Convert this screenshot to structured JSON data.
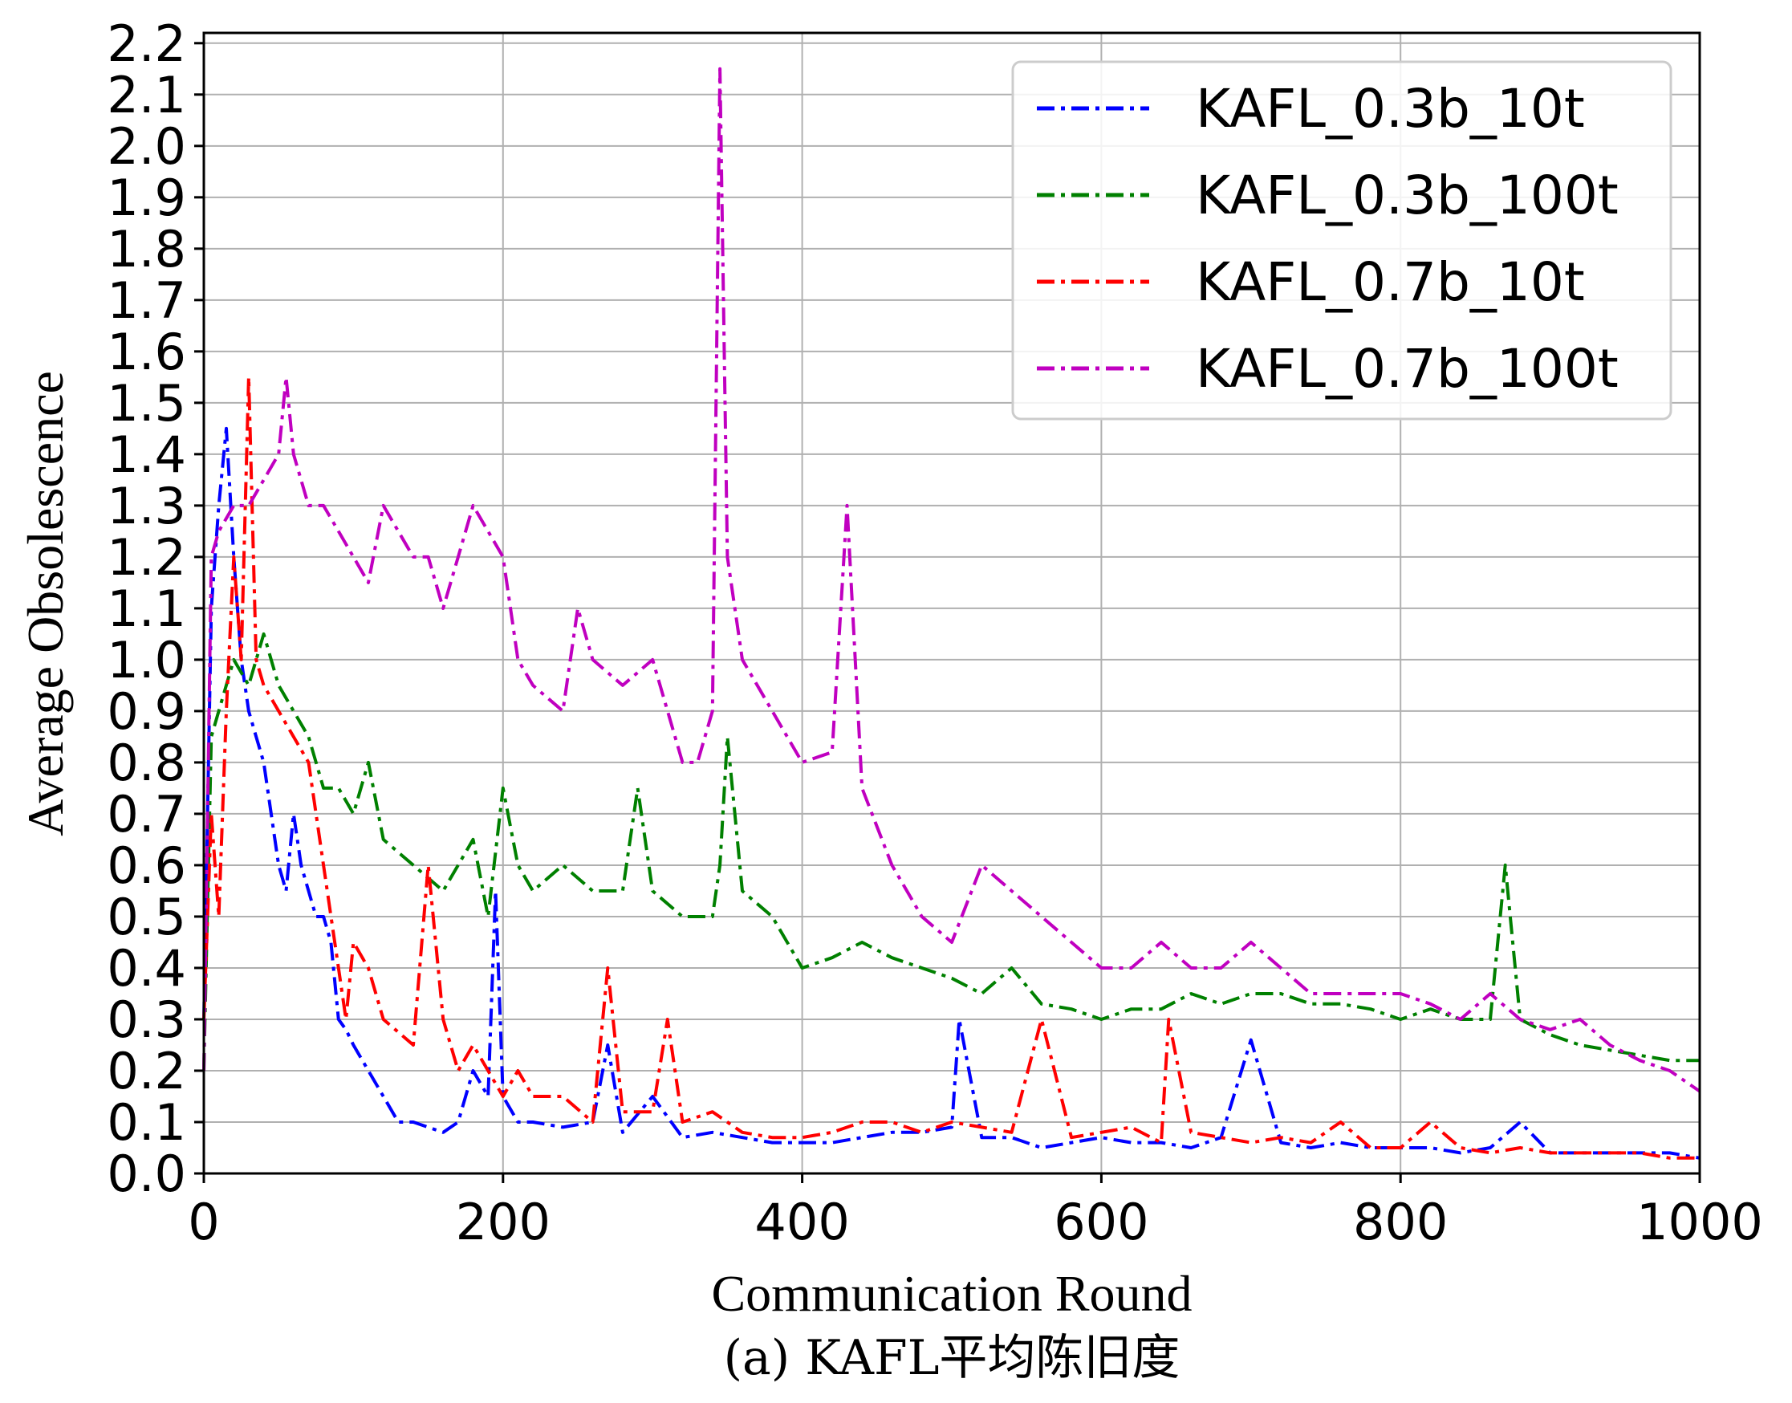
{
  "chart_data": {
    "type": "line",
    "title": "",
    "xlabel": "Communication Round",
    "ylabel": "Average Obsolescence",
    "caption": "(a) KAFL平均陈旧度",
    "xlim": [
      0,
      1000
    ],
    "ylim": [
      0,
      2.22
    ],
    "xticks": [
      0,
      200,
      400,
      600,
      800,
      1000
    ],
    "xtick_labels": [
      "0",
      "200",
      "400",
      "600",
      "800",
      "1000"
    ],
    "yticks": [
      0.0,
      0.1,
      0.2,
      0.3,
      0.4,
      0.5,
      0.6,
      0.7,
      0.8,
      0.9,
      1.0,
      1.1,
      1.2,
      1.3,
      1.4,
      1.5,
      1.6,
      1.7,
      1.8,
      1.9,
      2.0,
      2.1,
      2.2
    ],
    "ytick_labels": [
      "0.0",
      "0.1",
      "0.2",
      "0.3",
      "0.4",
      "0.5",
      "0.6",
      "0.7",
      "0.8",
      "0.9",
      "1.0",
      "1.1",
      "1.2",
      "1.3",
      "1.4",
      "1.5",
      "1.6",
      "1.7",
      "1.8",
      "1.9",
      "2.0",
      "2.1",
      "2.2"
    ],
    "grid": true,
    "legend_position": "top-right",
    "line_style": "dash-dot",
    "series": [
      {
        "name": "KAFL_0.3b_10t",
        "color": "#0000ff",
        "x": [
          0,
          5,
          10,
          15,
          20,
          25,
          30,
          35,
          40,
          45,
          50,
          55,
          60,
          65,
          70,
          75,
          80,
          85,
          90,
          95,
          100,
          110,
          120,
          130,
          140,
          150,
          160,
          170,
          180,
          190,
          195,
          200,
          210,
          220,
          240,
          260,
          270,
          280,
          300,
          320,
          340,
          360,
          380,
          400,
          420,
          440,
          460,
          480,
          500,
          505,
          520,
          540,
          560,
          580,
          600,
          620,
          640,
          660,
          680,
          700,
          720,
          740,
          760,
          780,
          800,
          820,
          840,
          860,
          880,
          900,
          920,
          940,
          960,
          980,
          1000
        ],
        "values": [
          0.3,
          1.1,
          1.3,
          1.45,
          1.2,
          1.0,
          0.9,
          0.85,
          0.8,
          0.7,
          0.6,
          0.55,
          0.7,
          0.6,
          0.55,
          0.5,
          0.5,
          0.45,
          0.3,
          0.28,
          0.25,
          0.2,
          0.15,
          0.1,
          0.1,
          0.09,
          0.08,
          0.1,
          0.2,
          0.15,
          0.55,
          0.15,
          0.1,
          0.1,
          0.09,
          0.1,
          0.25,
          0.08,
          0.15,
          0.07,
          0.08,
          0.07,
          0.06,
          0.06,
          0.06,
          0.07,
          0.08,
          0.08,
          0.09,
          0.3,
          0.07,
          0.07,
          0.05,
          0.06,
          0.07,
          0.06,
          0.06,
          0.05,
          0.07,
          0.26,
          0.06,
          0.05,
          0.06,
          0.05,
          0.05,
          0.05,
          0.04,
          0.05,
          0.1,
          0.04,
          0.04,
          0.04,
          0.04,
          0.04,
          0.03
        ]
      },
      {
        "name": "KAFL_0.3b_100t",
        "color": "#008000",
        "x": [
          0,
          5,
          10,
          20,
          30,
          40,
          50,
          60,
          70,
          80,
          90,
          100,
          110,
          120,
          140,
          160,
          180,
          190,
          200,
          210,
          220,
          240,
          260,
          280,
          290,
          300,
          320,
          340,
          345,
          350,
          360,
          380,
          400,
          420,
          440,
          460,
          480,
          500,
          520,
          540,
          560,
          580,
          600,
          620,
          640,
          660,
          680,
          700,
          720,
          740,
          760,
          780,
          800,
          820,
          840,
          860,
          870,
          880,
          900,
          920,
          940,
          960,
          980,
          1000
        ],
        "values": [
          0.2,
          0.85,
          0.9,
          1.0,
          0.95,
          1.05,
          0.95,
          0.9,
          0.85,
          0.75,
          0.75,
          0.7,
          0.8,
          0.65,
          0.6,
          0.55,
          0.65,
          0.5,
          0.75,
          0.6,
          0.55,
          0.6,
          0.55,
          0.55,
          0.75,
          0.55,
          0.5,
          0.5,
          0.6,
          0.85,
          0.55,
          0.5,
          0.4,
          0.42,
          0.45,
          0.42,
          0.4,
          0.38,
          0.35,
          0.4,
          0.33,
          0.32,
          0.3,
          0.32,
          0.32,
          0.35,
          0.33,
          0.35,
          0.35,
          0.33,
          0.33,
          0.32,
          0.3,
          0.32,
          0.3,
          0.3,
          0.6,
          0.3,
          0.27,
          0.25,
          0.24,
          0.23,
          0.22,
          0.22
        ]
      },
      {
        "name": "KAFL_0.7b_10t",
        "color": "#ff0000",
        "x": [
          0,
          5,
          10,
          15,
          20,
          25,
          30,
          35,
          40,
          50,
          60,
          70,
          80,
          90,
          95,
          100,
          110,
          120,
          140,
          150,
          160,
          170,
          180,
          190,
          200,
          210,
          220,
          240,
          260,
          270,
          280,
          300,
          310,
          320,
          340,
          360,
          380,
          400,
          420,
          440,
          460,
          480,
          500,
          520,
          540,
          560,
          580,
          600,
          620,
          640,
          645,
          660,
          680,
          700,
          720,
          740,
          760,
          780,
          800,
          820,
          840,
          860,
          880,
          900,
          920,
          940,
          960,
          980,
          1000
        ],
        "values": [
          0.3,
          0.7,
          0.5,
          0.9,
          1.2,
          1.0,
          1.55,
          1.0,
          0.95,
          0.9,
          0.85,
          0.8,
          0.6,
          0.4,
          0.3,
          0.45,
          0.4,
          0.3,
          0.25,
          0.6,
          0.3,
          0.2,
          0.25,
          0.2,
          0.15,
          0.2,
          0.15,
          0.15,
          0.1,
          0.4,
          0.12,
          0.12,
          0.3,
          0.1,
          0.12,
          0.08,
          0.07,
          0.07,
          0.08,
          0.1,
          0.1,
          0.08,
          0.1,
          0.09,
          0.08,
          0.3,
          0.07,
          0.08,
          0.09,
          0.06,
          0.3,
          0.08,
          0.07,
          0.06,
          0.07,
          0.06,
          0.1,
          0.05,
          0.05,
          0.1,
          0.05,
          0.04,
          0.05,
          0.04,
          0.04,
          0.04,
          0.04,
          0.03,
          0.03
        ]
      },
      {
        "name": "KAFL_0.7b_100t",
        "color": "#c000c0",
        "x": [
          0,
          5,
          10,
          20,
          30,
          40,
          50,
          55,
          60,
          70,
          80,
          90,
          100,
          110,
          120,
          130,
          140,
          150,
          160,
          170,
          180,
          190,
          200,
          210,
          220,
          240,
          250,
          260,
          280,
          300,
          320,
          330,
          340,
          345,
          350,
          360,
          380,
          400,
          420,
          430,
          440,
          460,
          480,
          500,
          520,
          540,
          560,
          580,
          600,
          620,
          640,
          660,
          680,
          700,
          720,
          740,
          760,
          780,
          800,
          820,
          840,
          860,
          880,
          900,
          920,
          940,
          960,
          980,
          1000
        ],
        "values": [
          0.2,
          1.2,
          1.25,
          1.3,
          1.3,
          1.35,
          1.4,
          1.55,
          1.4,
          1.3,
          1.3,
          1.25,
          1.2,
          1.15,
          1.3,
          1.25,
          1.2,
          1.2,
          1.1,
          1.2,
          1.3,
          1.25,
          1.2,
          1.0,
          0.95,
          0.9,
          1.1,
          1.0,
          0.95,
          1.0,
          0.8,
          0.8,
          0.9,
          2.15,
          1.2,
          1.0,
          0.9,
          0.8,
          0.82,
          1.3,
          0.75,
          0.6,
          0.5,
          0.45,
          0.6,
          0.55,
          0.5,
          0.45,
          0.4,
          0.4,
          0.45,
          0.4,
          0.4,
          0.45,
          0.4,
          0.35,
          0.35,
          0.35,
          0.35,
          0.33,
          0.3,
          0.35,
          0.3,
          0.28,
          0.3,
          0.25,
          0.22,
          0.2,
          0.16
        ]
      }
    ]
  }
}
